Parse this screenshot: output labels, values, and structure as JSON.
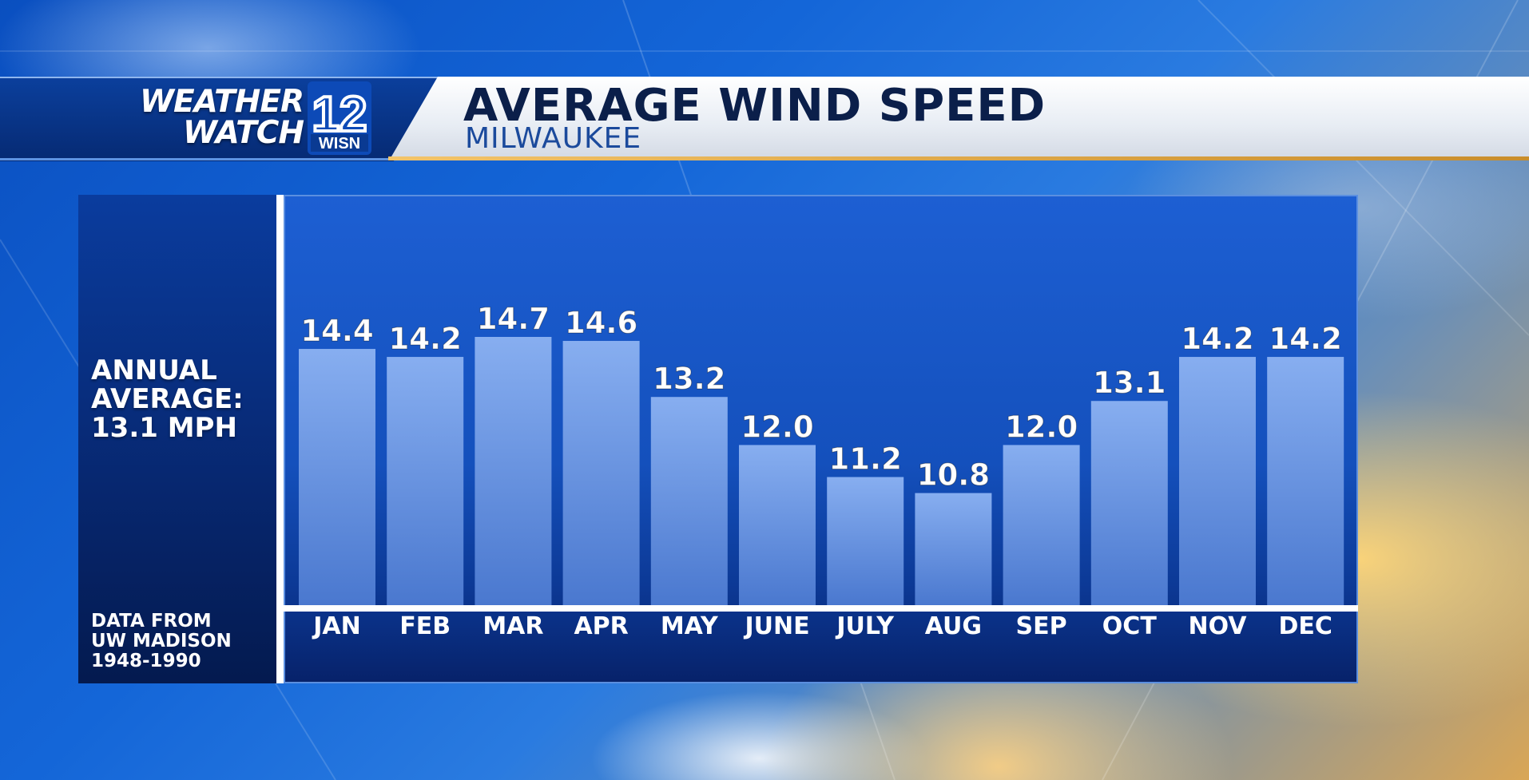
{
  "header": {
    "brand_line1": "WEATHER",
    "brand_line2": "WATCH",
    "station_number": "12",
    "station_call": "WISN",
    "title": "AVERAGE WIND SPEED",
    "subtitle": "MILWAUKEE"
  },
  "sidebar": {
    "annual_line1": "ANNUAL",
    "annual_line2": "AVERAGE:",
    "annual_line3": "13.1 MPH",
    "source_line1": "DATA FROM",
    "source_line2": "UW MADISON",
    "source_line3": "1948-1990"
  },
  "colors": {
    "bar_top": "#87aef0",
    "bar_bottom": "#4a78cf",
    "label": "#ffffff",
    "title": "#0b1f4a",
    "subtitle": "#1b4a9c"
  },
  "chart_data": {
    "type": "bar",
    "categories": [
      "JAN",
      "FEB",
      "MAR",
      "APR",
      "MAY",
      "JUNE",
      "JULY",
      "AUG",
      "SEP",
      "OCT",
      "NOV",
      "DEC"
    ],
    "values": [
      14.4,
      14.2,
      14.7,
      14.6,
      13.2,
      12.0,
      11.2,
      10.8,
      12.0,
      13.1,
      14.2,
      14.2
    ],
    "value_labels": [
      "14.4",
      "14.2",
      "14.7",
      "14.6",
      "13.2",
      "12.0",
      "11.2",
      "10.8",
      "12.0",
      "13.1",
      "14.2",
      "14.2"
    ],
    "title": "AVERAGE WIND SPEED",
    "subtitle": "MILWAUKEE",
    "xlabel": "",
    "ylabel": "",
    "grid": false,
    "legend": "none"
  }
}
